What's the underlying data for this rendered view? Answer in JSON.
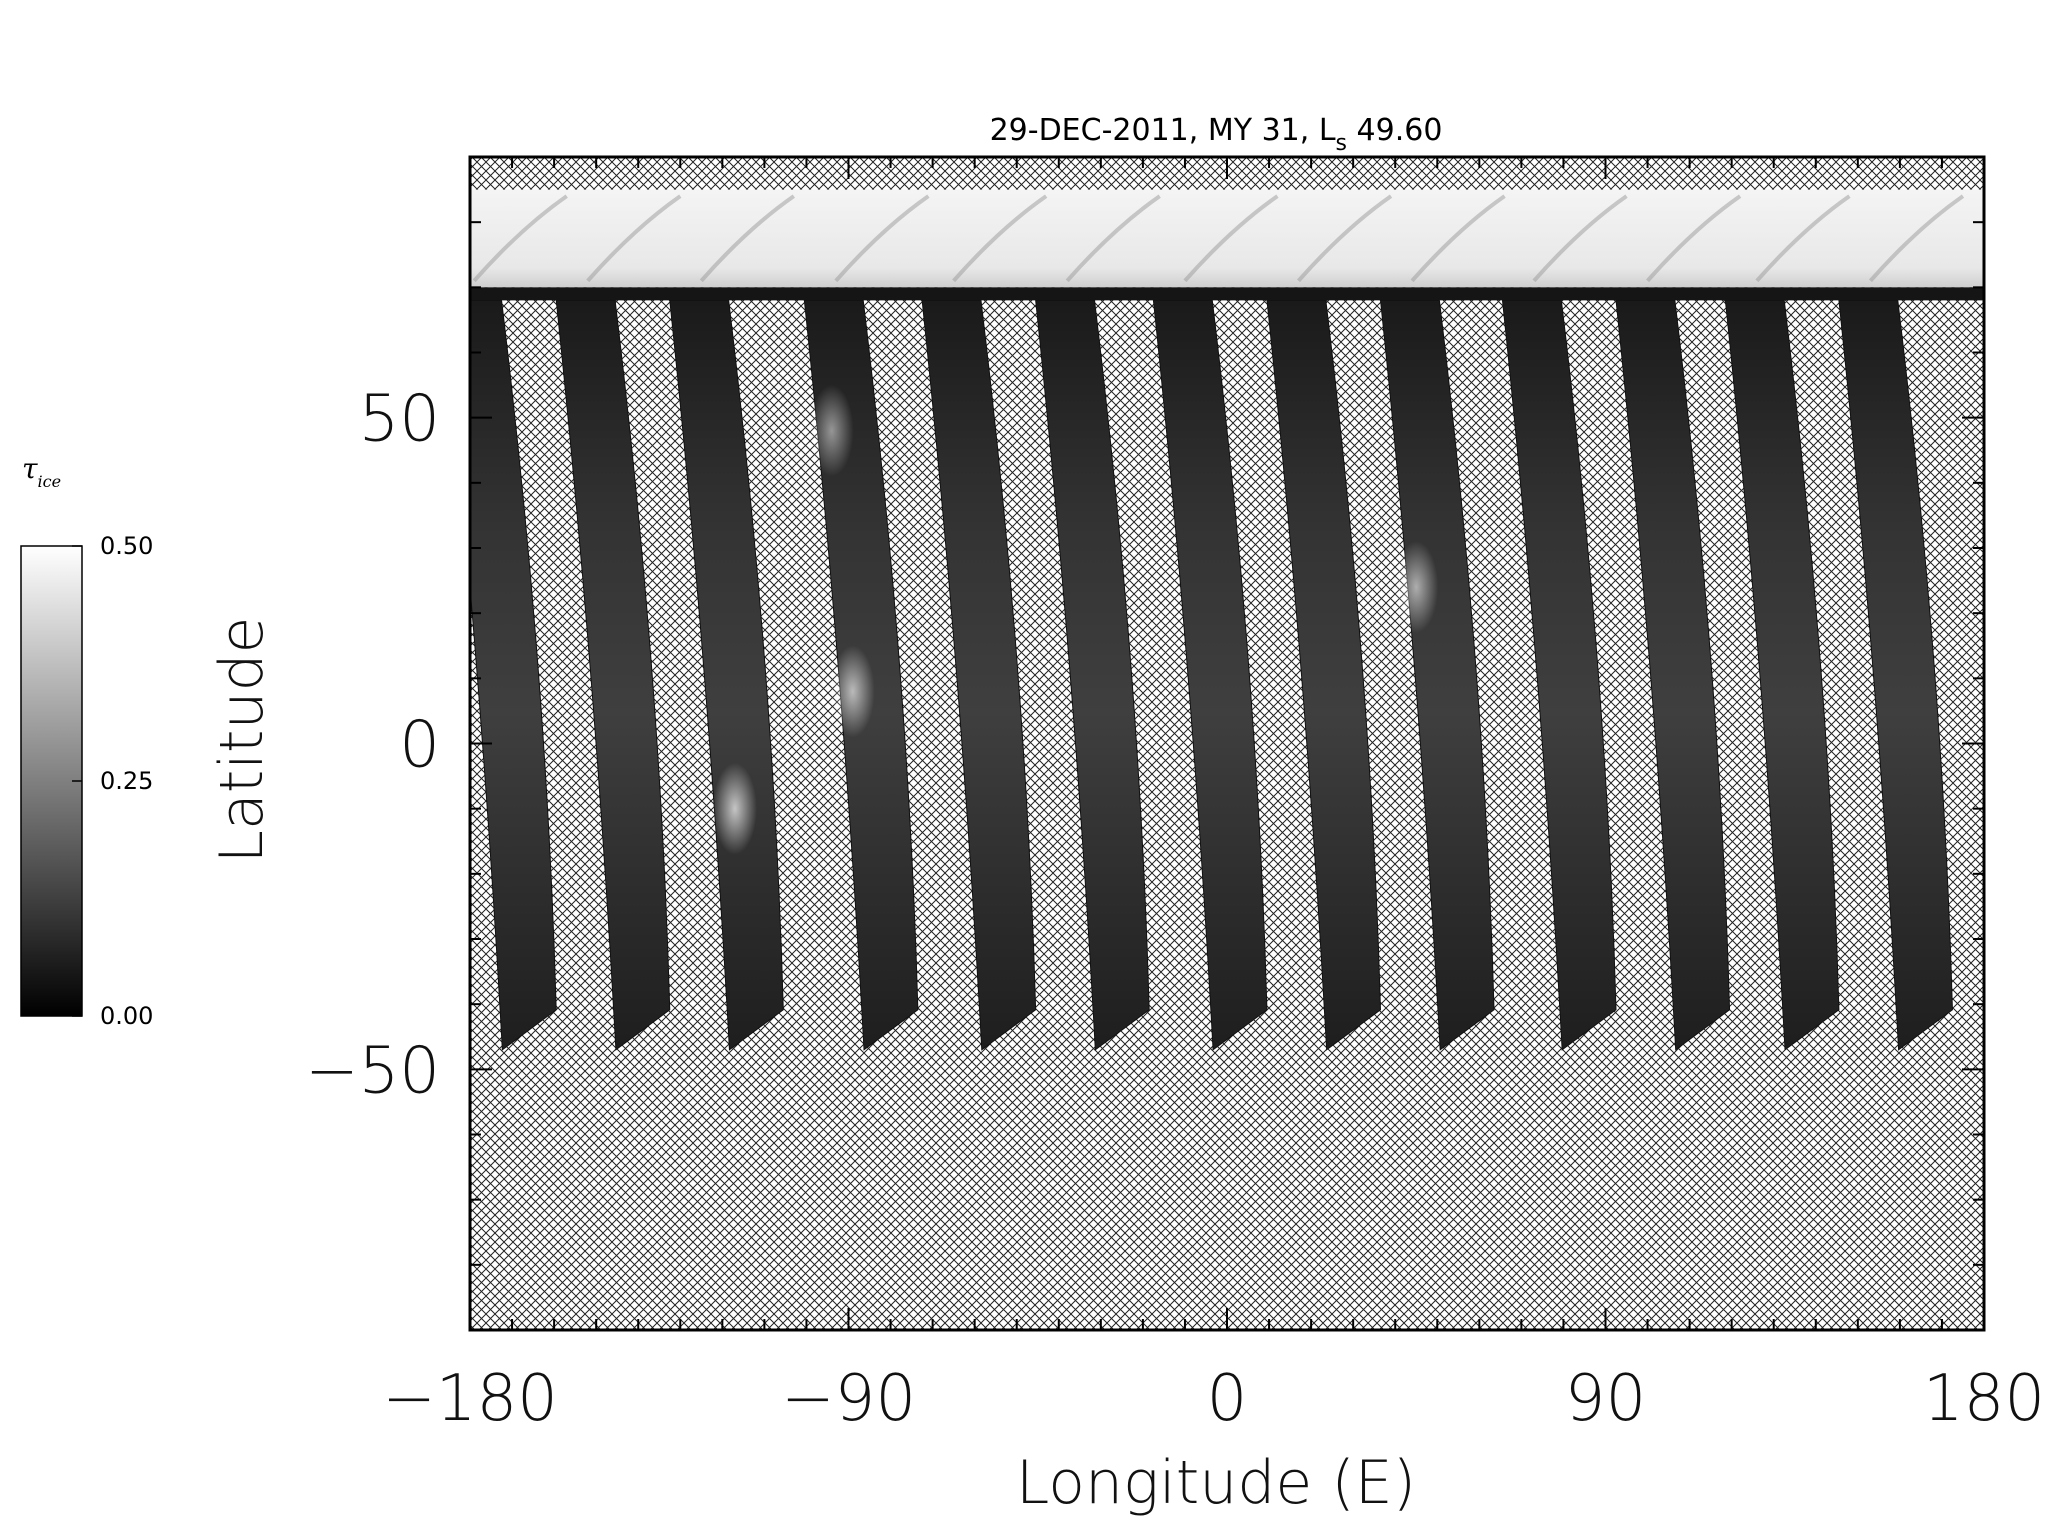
{
  "chart_data": {
    "type": "heatmap",
    "title": {
      "main": "29-DEC-2011, MY 31,  L",
      "subscript": "s",
      "value": " 49.60"
    },
    "xlabel": "Longitude (E)",
    "ylabel": "Latitude",
    "xlim": [
      -180,
      180
    ],
    "ylim": [
      -90,
      90
    ],
    "x_ticks": [
      -180,
      -90,
      0,
      90,
      180
    ],
    "x_tick_labels": [
      "−180",
      "−90",
      "0",
      "90",
      "180"
    ],
    "y_ticks": [
      50,
      0,
      -50
    ],
    "y_tick_labels": [
      "50",
      "0",
      "−50"
    ],
    "colorbar": {
      "title_symbol": "τ",
      "title_subscript": "ice",
      "range": [
        0.0,
        0.5
      ],
      "ticks": [
        0.0,
        0.25,
        0.5
      ],
      "tick_labels": [
        "0.00",
        "0.25",
        "0.50"
      ],
      "colormap": "grayscale",
      "color_low": "#000000",
      "color_high": "#ffffff"
    },
    "no_data_pattern": "crosshatch",
    "polar_cap_lat_range": [
      70,
      85
    ],
    "swath_lat_range": [
      -47,
      68
    ],
    "swath_center_longitudes": [
      -173,
      -146,
      -119,
      -87,
      -59,
      -32,
      -4,
      23,
      50,
      79,
      106,
      132,
      159
    ],
    "swath_width_deg": 14,
    "swath_slant_deg": 13,
    "bright_features": [
      {
        "lon": -117,
        "lat": -10,
        "tau": 0.42
      },
      {
        "lon": -89,
        "lat": 8,
        "tau": 0.38
      },
      {
        "lon": -94,
        "lat": 48,
        "tau": 0.3
      },
      {
        "lon": 45,
        "lat": 24,
        "tau": 0.35
      }
    ],
    "grid": false
  }
}
